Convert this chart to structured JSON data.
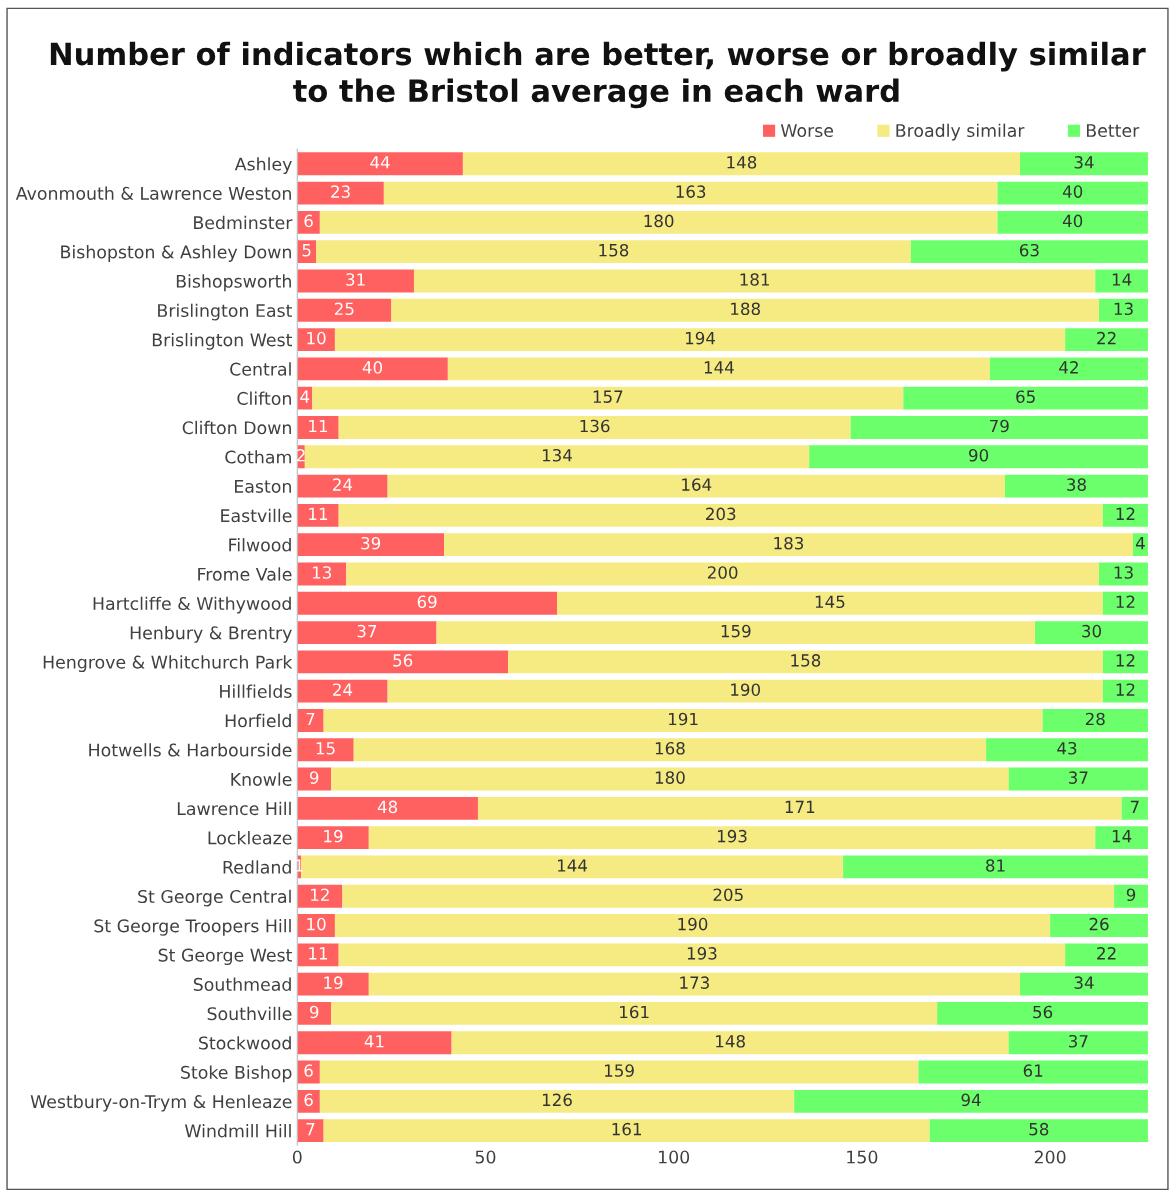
{
  "chart_data": {
    "type": "bar",
    "orientation": "horizontal",
    "stacked": true,
    "title": "Number of indicators which are better, worse or broadly similar\nto the Bristol average in each ward",
    "categories": [
      "Ashley",
      "Avonmouth & Lawrence Weston",
      "Bedminster",
      "Bishopston & Ashley Down",
      "Bishopsworth",
      "Brislington East",
      "Brislington West",
      "Central",
      "Clifton",
      "Clifton Down",
      "Cotham",
      "Easton",
      "Eastville",
      "Filwood",
      "Frome Vale",
      "Hartcliffe & Withywood",
      "Henbury & Brentry",
      "Hengrove & Whitchurch Park",
      "Hillfields",
      "Horfield",
      "Hotwells & Harbourside",
      "Knowle",
      "Lawrence Hill",
      "Lockleaze",
      "Redland",
      "St George Central",
      "St George Troopers Hill",
      "St George West",
      "Southmead",
      "Southville",
      "Stockwood",
      "Stoke Bishop",
      "Westbury-on-Trym & Henleaze",
      "Windmill Hill"
    ],
    "series": [
      {
        "name": "Worse",
        "color": "#ff6161",
        "values": [
          44,
          23,
          6,
          5,
          31,
          25,
          10,
          40,
          4,
          11,
          2,
          24,
          11,
          39,
          13,
          69,
          37,
          56,
          24,
          7,
          15,
          9,
          48,
          19,
          1,
          12,
          10,
          11,
          19,
          9,
          41,
          6,
          6,
          7
        ]
      },
      {
        "name": "Broadly similar",
        "color": "#f5eb82",
        "values": [
          148,
          163,
          180,
          158,
          181,
          188,
          194,
          144,
          157,
          136,
          134,
          164,
          203,
          183,
          200,
          145,
          159,
          158,
          190,
          191,
          168,
          180,
          171,
          193,
          144,
          205,
          190,
          193,
          173,
          161,
          148,
          159,
          126,
          161
        ]
      },
      {
        "name": "Better",
        "color": "#6bff6b",
        "values": [
          34,
          40,
          40,
          63,
          14,
          13,
          22,
          42,
          65,
          79,
          90,
          38,
          12,
          4,
          13,
          12,
          30,
          12,
          12,
          28,
          43,
          37,
          7,
          14,
          81,
          9,
          26,
          22,
          34,
          56,
          37,
          61,
          94,
          58
        ]
      }
    ],
    "xlim": [
      0,
      226
    ],
    "xticks": [
      0,
      50,
      100,
      150,
      200
    ],
    "data_labels": true,
    "legend": "top right",
    "grid": false
  }
}
